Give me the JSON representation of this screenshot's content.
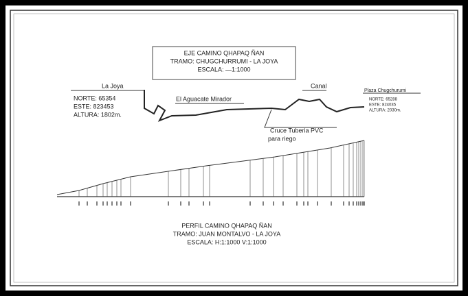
{
  "plan": {
    "title": [
      "EJE CAMINO QHAPAQ ÑAN",
      "TRAMO: CHUGCHURRUMI - LA JOYA",
      "ESCALA: —1:1000"
    ],
    "start": {
      "label": "La Joya",
      "lines": [
        "NORTE: 65354",
        "ESTE: 823453",
        "ALTURA: 1802m."
      ]
    },
    "mirador": "El Aguacate Mirador",
    "canal": "Canal",
    "crossing": [
      "Cruce Tuberia PVC",
      "para riego"
    ],
    "end": {
      "label": "Plaza Chugchurumi",
      "lines": [
        "NORTE: 65288",
        "ESTE: 824035",
        "ALTURA: 2030m."
      ]
    }
  },
  "profile": {
    "title": [
      "PERFIL CAMINO QHAPAQ ÑAN",
      "TRAMO: JUAN MONTALVO - LA JOYA",
      "ESCALA: H:1:1000  V:1:1000"
    ]
  }
}
